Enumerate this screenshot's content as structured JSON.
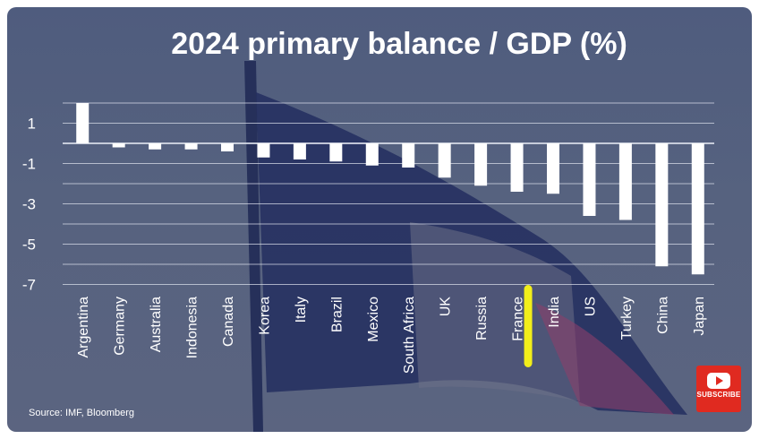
{
  "colors": {
    "background": "#535f80",
    "bar": "#ffffff",
    "grid": "#dfe3ee",
    "highlight": "#f2ee1a",
    "subscribe_red": "#e02a20"
  },
  "chart_data": {
    "type": "bar",
    "title": "2024 primary balance / GDP (%)",
    "categories": [
      "Argentina",
      "Germany",
      "Australia",
      "Indonesia",
      "Canada",
      "Korea",
      "Italy",
      "Brazil",
      "Mexico",
      "South Africa",
      "UK",
      "Russia",
      "France",
      "India",
      "US",
      "Turkey",
      "China",
      "Japan"
    ],
    "values": [
      2.0,
      -0.2,
      -0.3,
      -0.3,
      -0.4,
      -0.7,
      -0.8,
      -0.9,
      -1.1,
      -1.2,
      -1.7,
      -2.1,
      -2.4,
      -2.5,
      -3.6,
      -3.8,
      -6.1,
      -6.5
    ],
    "yticks": [
      1,
      -1,
      -3,
      -5,
      -7
    ],
    "ylim": [
      -7,
      2.5
    ],
    "highlighted_category": "France",
    "grid": true,
    "source": "Source: IMF, Bloomberg"
  },
  "badge": {
    "icon": "youtube-play-icon",
    "label": "SUBSCRIBE"
  }
}
